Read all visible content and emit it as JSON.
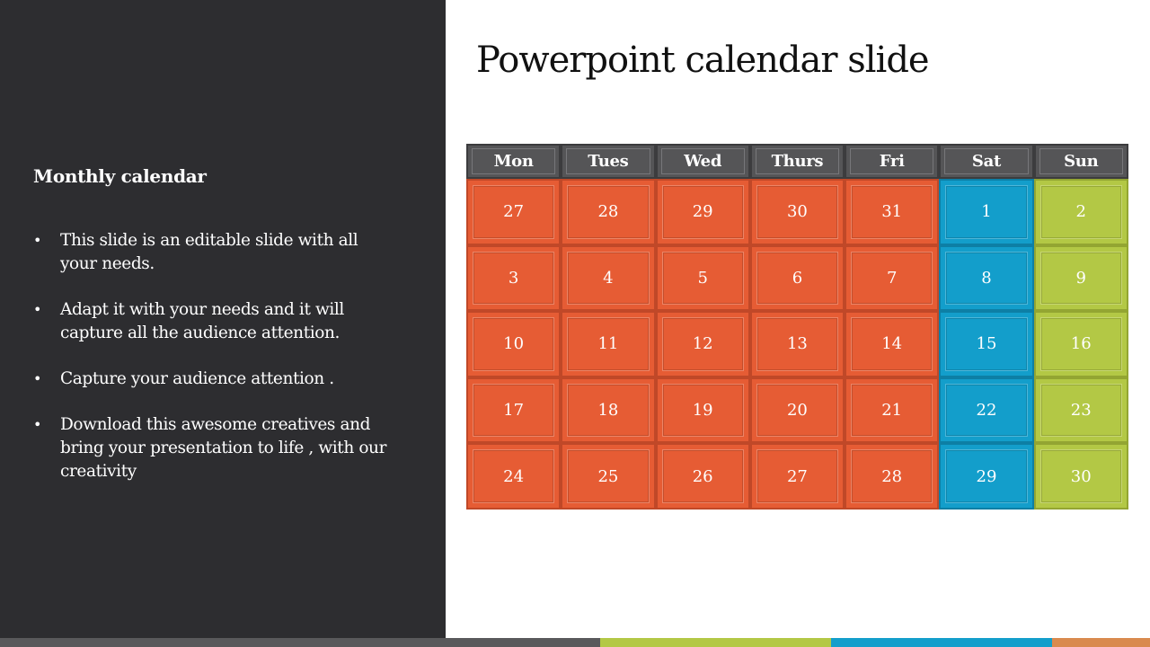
{
  "title": "Powerpoint calendar slide",
  "left": {
    "heading": "Monthly calendar",
    "bullets": [
      "This slide is an editable slide with all your needs.",
      "Adapt it with your needs and it will capture all the audience attention.",
      "Capture your audience attention .",
      "Download this awesome creatives and bring your presentation to life , with our creativity"
    ]
  },
  "calendar": {
    "days": [
      "Mon",
      "Tues",
      "Wed",
      "Thurs",
      "Fri",
      "Sat",
      "Sun"
    ],
    "weeks": [
      [
        "27",
        "28",
        "29",
        "30",
        "31",
        "1",
        "2"
      ],
      [
        "3",
        "4",
        "5",
        "6",
        "7",
        "8",
        "9"
      ],
      [
        "10",
        "11",
        "12",
        "13",
        "14",
        "15",
        "16"
      ],
      [
        "17",
        "18",
        "19",
        "20",
        "21",
        "22",
        "23"
      ],
      [
        "24",
        "25",
        "26",
        "27",
        "28",
        "29",
        "30"
      ]
    ]
  },
  "colors": {
    "panel": "#2d2d30",
    "weekday": "#e65c34",
    "saturday": "#139ecb",
    "sunday": "#b3c845",
    "header": "#555557",
    "footer": [
      "#59595b",
      "#b3c845",
      "#139ecb",
      "#d98a4e"
    ]
  }
}
